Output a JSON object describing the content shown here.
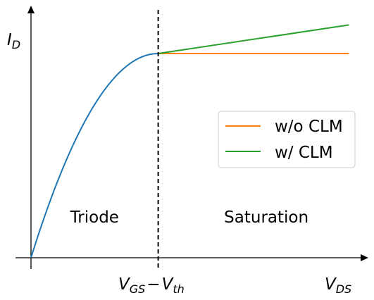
{
  "chart_data": {
    "type": "line",
    "title": "",
    "xlabel": "V_DS",
    "ylabel": "I_D",
    "x_axis_label": {
      "main": "V",
      "sub": "DS"
    },
    "y_axis_label": {
      "main": "I",
      "sub": "D"
    },
    "threshold_label": {
      "v1": "V",
      "sub1": "GS",
      "minus": "−",
      "v2": "V",
      "sub2": "th"
    },
    "threshold_x": 1.0,
    "xlim": [
      0,
      2.5
    ],
    "ylim": [
      0,
      1.2
    ],
    "regions": [
      {
        "name": "triode",
        "text": "Triode",
        "x": 0.5,
        "y": 0.2
      },
      {
        "name": "saturation",
        "text": "Saturation",
        "x": 1.85,
        "y": 0.2
      }
    ],
    "series": [
      {
        "key": "triode",
        "color": "#1f77b4",
        "x": [
          0,
          0.1,
          0.2,
          0.3,
          0.4,
          0.5,
          0.6,
          0.7,
          0.8,
          0.9,
          1.0
        ],
        "y": [
          0,
          0.19,
          0.36,
          0.51,
          0.64,
          0.75,
          0.84,
          0.91,
          0.96,
          0.99,
          1.0
        ]
      },
      {
        "key": "without_clm",
        "name": "w/o CLM",
        "color": "#ff7f0e",
        "x": [
          1.0,
          2.5
        ],
        "y": [
          1.0,
          1.0
        ]
      },
      {
        "key": "with_clm",
        "name": "w/ CLM",
        "color": "#2ca02c",
        "x": [
          1.0,
          2.5
        ],
        "y": [
          1.0,
          1.14
        ]
      }
    ],
    "legend": {
      "placement": "right",
      "entries": [
        "w/o CLM",
        "w/ CLM"
      ]
    },
    "grid": false
  }
}
